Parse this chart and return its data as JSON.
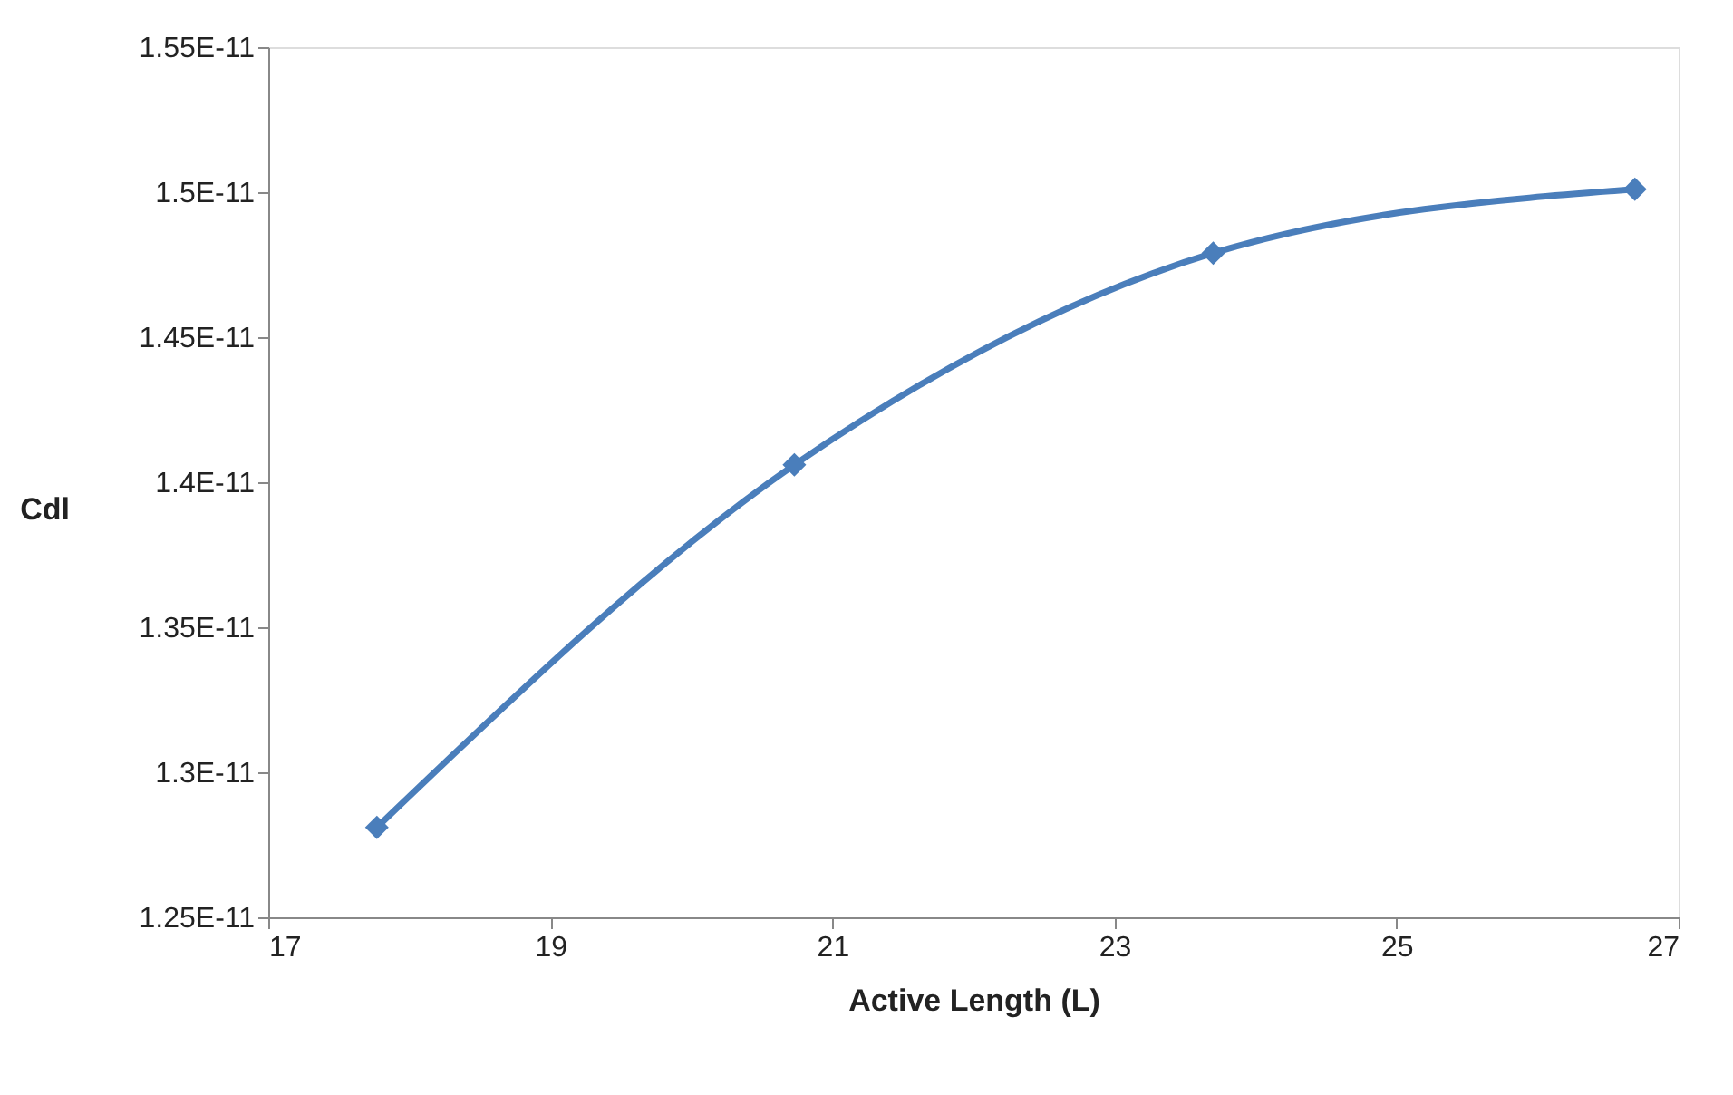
{
  "chart_data": {
    "type": "line",
    "xlabel": "Active Length (L)",
    "ylabel": "Cdl",
    "x": [
      17.77,
      20.73,
      23.7,
      26.69
    ],
    "series": [
      {
        "color": "#4a7ebb",
        "values": [
          1.281e-11,
          1.406e-11,
          1.479e-11,
          1.501e-11
        ]
      }
    ],
    "xlim": [
      17,
      27
    ],
    "xticks": [
      17,
      19,
      21,
      23,
      25,
      27
    ],
    "ylim": [
      1.25e-11,
      1.55e-11
    ],
    "yticks": [
      {
        "value": 1.25e-11,
        "label": "1.25E-11"
      },
      {
        "value": 1.3e-11,
        "label": "1.3E-11"
      },
      {
        "value": 1.35e-11,
        "label": "1.35E-11"
      },
      {
        "value": 1.4e-11,
        "label": "1.4E-11"
      },
      {
        "value": 1.45e-11,
        "label": "1.45E-11"
      },
      {
        "value": 1.5e-11,
        "label": "1.5E-11"
      },
      {
        "value": 1.55e-11,
        "label": "1.55E-11"
      }
    ],
    "grid": false,
    "marker": "diamond",
    "line_style": "solid"
  }
}
